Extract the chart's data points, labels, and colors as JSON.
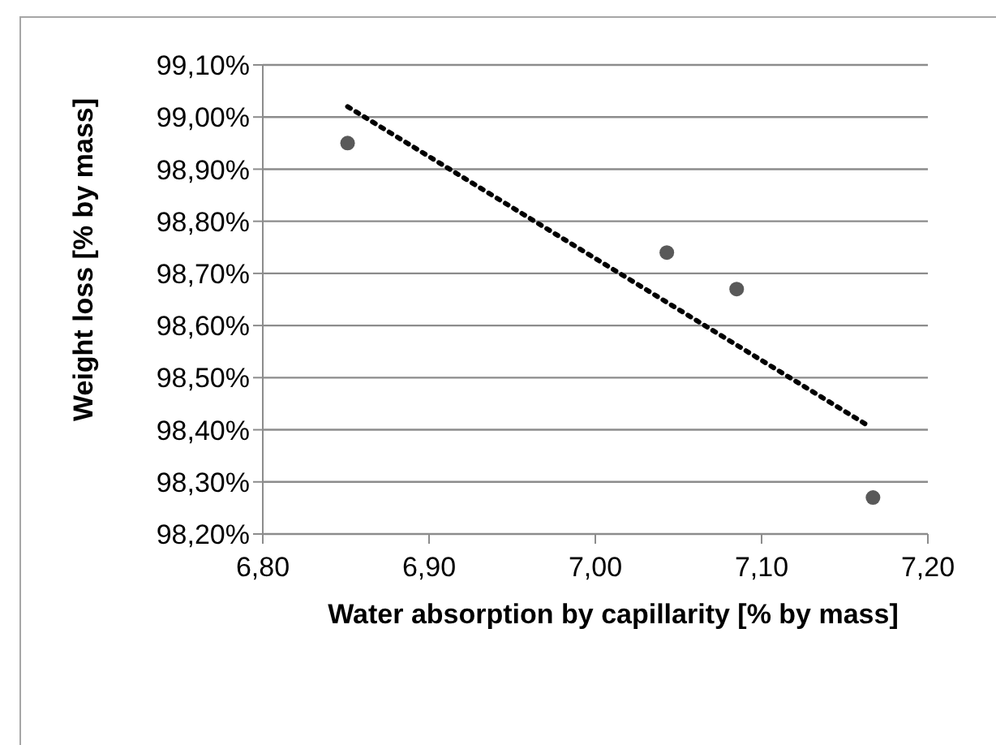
{
  "chart_data": {
    "type": "scatter",
    "xlabel": "Water absorption by capillarity [% by mass]",
    "ylabel": "Weight loss [% by mass]",
    "xlim": [
      6.8,
      7.2
    ],
    "xticks": [
      {
        "value": 6.8,
        "label": "6,80"
      },
      {
        "value": 6.9,
        "label": "6,90"
      },
      {
        "value": 7.0,
        "label": "7,00"
      },
      {
        "value": 7.1,
        "label": "7,10"
      },
      {
        "value": 7.2,
        "label": "7,20"
      }
    ],
    "ylim": [
      98.2,
      99.1
    ],
    "yticks": [
      {
        "value": 98.2,
        "label": "98,20%"
      },
      {
        "value": 98.3,
        "label": "98,30%"
      },
      {
        "value": 98.4,
        "label": "98,40%"
      },
      {
        "value": 98.5,
        "label": "98,50%"
      },
      {
        "value": 98.6,
        "label": "98,60%"
      },
      {
        "value": 98.7,
        "label": "98,70%"
      },
      {
        "value": 98.8,
        "label": "98,80%"
      },
      {
        "value": 98.9,
        "label": "98,90%"
      },
      {
        "value": 99.0,
        "label": "99,00%"
      },
      {
        "value": 99.1,
        "label": "99,10%"
      }
    ],
    "grid": "y",
    "marker": "circle",
    "series": [
      {
        "color": "#595959",
        "x": [
          6.851,
          7.043,
          7.085,
          7.167
        ],
        "values": [
          98.95,
          98.74,
          98.67,
          98.27
        ]
      },
      {
        "type": "line",
        "color": "#000000",
        "line_style": "dotted",
        "marker": "none",
        "x": [
          6.851,
          7.163
        ],
        "values": [
          99.02,
          98.41
        ]
      }
    ]
  }
}
